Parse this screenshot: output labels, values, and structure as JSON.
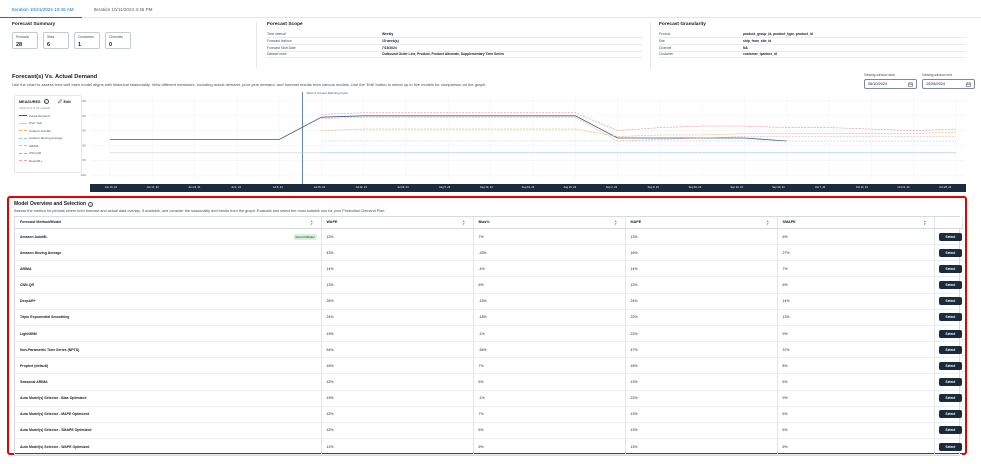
{
  "tabs": [
    "Iteration 10/21/2024 10:46 AM",
    "Iteration 10/11/2024 3:45 PM"
  ],
  "summary": {
    "title": "Forecast Summary",
    "cards": [
      {
        "label": "Products",
        "value": "28"
      },
      {
        "label": "Sites",
        "value": "6"
      },
      {
        "label": "Customers",
        "value": "1"
      },
      {
        "label": "Channels",
        "value": "0"
      }
    ]
  },
  "scope": {
    "title": "Forecast Scope",
    "rows": [
      {
        "k": "Time interval",
        "v": "Weekly"
      },
      {
        "k": "Forecast horizon",
        "v": "15 week(s)"
      },
      {
        "k": "Forecast Start Date",
        "v": "7/15/2024"
      },
      {
        "k": "Dataset used",
        "v": "Outbound Order Line, Product, Product Alternate, Supplementary Time Series"
      }
    ]
  },
  "granularity": {
    "title": "Forecast Granularity",
    "rows": [
      {
        "k": "Product",
        "v": "product_group_id, product_type, product_id"
      },
      {
        "k": "Site",
        "v": "ship_from_site_id"
      },
      {
        "k": "Channel",
        "v": "NA"
      },
      {
        "k": "Customer",
        "v": "customer_tpartner_id"
      }
    ]
  },
  "forecast_chart": {
    "title": "Forecast(s) Vs. Actual Demand",
    "description": "Use the chart to assess how well each model aligns with historical seasonality. View different measures, including actual demand, prior year demand, and forecast results from various models. Use the 'Edit' button to select up to five models for comparison on the graph.",
    "window_start_label": "Viewing window start",
    "window_start_value": "06/10/2024",
    "window_end_label": "Viewing window end",
    "window_end_value": "10/28/2024",
    "annotation": "Start of Current Planning Cycle",
    "measures_title": "MEASURES",
    "edit_label": "Edit",
    "measures_sub": "Viewing 5 of 14 models",
    "measures": [
      {
        "name": "Actual Demand",
        "color": "#3b5b80"
      },
      {
        "name": "Prior Year",
        "color": "#c8cdd3"
      },
      {
        "name": "Amazon AutoML",
        "color": "#e8b04a"
      },
      {
        "name": "Amazon Moving Average",
        "color": "#7fd3cf"
      },
      {
        "name": "ARIMA",
        "color": "#a8c8ec"
      },
      {
        "name": "CNN-QR",
        "color": "#e88b9a"
      },
      {
        "name": "DeepAR+",
        "color": "#f0a3a3"
      }
    ],
    "icons": {
      "info": "info-icon",
      "edit": "pencil-icon",
      "calendar": "calendar-icon"
    }
  },
  "chart_data": {
    "type": "line",
    "x": [
      "Jun 10, 24",
      "Jun 17, 24",
      "Jun 24, 24",
      "Jul 1, 24",
      "Jul 8, 24",
      "Jul 15, 24",
      "Jul 22, 24",
      "Jul 29, 24",
      "Aug 5, 24",
      "Aug 12, 24",
      "Aug 19, 24",
      "Aug 26, 24",
      "Sep 2, 24",
      "Sep 9, 24",
      "Sep 16, 24",
      "Sep 23, 24",
      "Sep 30, 24",
      "Oct 7, 24",
      "Oct 14, 24",
      "Oct 21, 24",
      "Oct 28, 24"
    ],
    "yticks": [
      "10K",
      "15K",
      "20K",
      "25K",
      "30K",
      "35K"
    ],
    "ylim": [
      8000,
      37000
    ],
    "annotation_x": "Jul 15, 24",
    "series": [
      {
        "name": "Actual Demand",
        "color": "#3b5b80",
        "values": [
          22000,
          22000,
          22000,
          22000,
          22000,
          29500,
          30000,
          30000,
          30000,
          30000,
          30000,
          30000,
          22500,
          22500,
          22500,
          22500,
          21500,
          null,
          null,
          null,
          null
        ]
      },
      {
        "name": "Prior Year",
        "color": "#c8cdd3",
        "values": [
          17500,
          17500,
          17500,
          17500,
          17500,
          17500,
          17500,
          17500,
          17500,
          17500,
          17500,
          17500,
          17500,
          17500,
          17500,
          17500,
          17500,
          17500,
          17500,
          17500,
          17500
        ]
      },
      {
        "name": "Amazon AutoML",
        "color": "#e8b04a",
        "values": [
          null,
          null,
          null,
          null,
          null,
          25000,
          25500,
          25500,
          25500,
          25500,
          25500,
          25500,
          23000,
          23500,
          23500,
          24000,
          24000,
          24000,
          24000,
          24000,
          24500
        ]
      },
      {
        "name": "Amazon Moving Average",
        "color": "#7fd3cf",
        "values": [
          null,
          null,
          null,
          null,
          null,
          17500,
          17500,
          17500,
          17500,
          17500,
          17500,
          17500,
          17500,
          17500,
          17500,
          17500,
          17500,
          17500,
          17500,
          17500,
          17500
        ]
      },
      {
        "name": "ARIMA",
        "color": "#a8c8ec",
        "values": [
          null,
          null,
          null,
          null,
          null,
          21500,
          21500,
          21500,
          21500,
          21500,
          21500,
          21500,
          21500,
          21500,
          21500,
          21500,
          21500,
          21500,
          21500,
          21500,
          21500
        ]
      },
      {
        "name": "CNN-QR",
        "color": "#e88b9a",
        "values": [
          null,
          null,
          null,
          null,
          null,
          30500,
          31000,
          31000,
          31000,
          31000,
          31000,
          31000,
          25000,
          26000,
          26500,
          26500,
          26000,
          26000,
          25500,
          25000,
          25500
        ]
      },
      {
        "name": "DeepAR+",
        "color": "#f0a3a3",
        "values": [
          null,
          null,
          null,
          null,
          null,
          29000,
          29500,
          29500,
          29500,
          29500,
          29500,
          29500,
          21500,
          22000,
          22500,
          23000,
          23000,
          23000,
          23000,
          23000,
          23000
        ]
      }
    ]
  },
  "model_section": {
    "title": "Model Overview and Selection",
    "description": "Assess the metrics for periods where both forecast and actual data overlap, if available, and consider the seasonality and trends from the graph. Evaluate and select the most suitable one for your Production Demand Plan.",
    "headers": [
      "Forecast Method/Model",
      "WAPE",
      "Bias%",
      "MAPE",
      "SMAPE"
    ],
    "badge": "Current Model",
    "select_label": "Select",
    "rows": [
      {
        "model": "Amazon AutoML",
        "wape": "12%",
        "bias": "7%",
        "mape": "13%",
        "smape": "6%",
        "current": true
      },
      {
        "model": "Amazon Moving Average",
        "wape": "43%",
        "bias": "-43%",
        "mape": "16%",
        "smape": "27%"
      },
      {
        "model": "ARIMA",
        "wape": "14%",
        "bias": "-4%",
        "mape": "14%",
        "smape": "7%"
      },
      {
        "model": "CNN-QR",
        "wape": "13%",
        "bias": "6%",
        "mape": "12%",
        "smape": "6%"
      },
      {
        "model": "DeepAR+",
        "wape": "26%",
        "bias": "-16%",
        "mape": "24%",
        "smape": "14%"
      },
      {
        "model": "Triple Exponential Smoothing",
        "wape": "24%",
        "bias": "-18%",
        "mape": "22%",
        "smape": "13%"
      },
      {
        "model": "LightGBM",
        "wape": "19%",
        "bias": "-1%",
        "mape": "22%",
        "smape": "9%"
      },
      {
        "model": "Non-Parametric Time Series (NPTS)",
        "wape": "54%",
        "bias": "-54%",
        "mape": "47%",
        "smape": "37%"
      },
      {
        "model": "Prophet (default)",
        "wape": "16%",
        "bias": "7%",
        "mape": "18%",
        "smape": "8%"
      },
      {
        "model": "Seasonal ARIMA",
        "wape": "12%",
        "bias": "6%",
        "mape": "13%",
        "smape": "6%"
      },
      {
        "model": "Auto Model(s) Selector - Bias Optimized",
        "wape": "19%",
        "bias": "-1%",
        "mape": "22%",
        "smape": "9%"
      },
      {
        "model": "Auto Model(s) Selector - MAPE Optimized",
        "wape": "12%",
        "bias": "7%",
        "mape": "13%",
        "smape": "6%"
      },
      {
        "model": "Auto Model(s) Selector - SMAPE Optimized",
        "wape": "12%",
        "bias": "6%",
        "mape": "13%",
        "smape": "6%"
      },
      {
        "model": "Auto Model(s) Selector - WAPE Optimized",
        "wape": "12%",
        "bias": "6%",
        "mape": "13%",
        "smape": "6%"
      }
    ]
  }
}
